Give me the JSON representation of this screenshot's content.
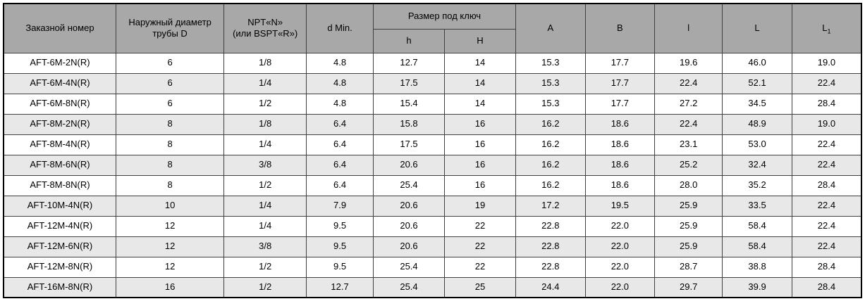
{
  "colors": {
    "header_bg": "#a8a8a8",
    "row_bg": "#ffffff",
    "row_alt_bg": "#e8e8e8",
    "border": "#404040",
    "outer_border": "#000000"
  },
  "table": {
    "headers": {
      "order_number": "Заказной номер",
      "outer_diameter": "Наружный диаметр\nтрубы D",
      "thread": "NPT«N»\n(или BSPT«R»)",
      "d_min": "d Min.",
      "wrench_size": "Размер под ключ",
      "h_small": "h",
      "h_big": "H",
      "a": "A",
      "b": "B",
      "l_small": "l",
      "l_big": "L",
      "l1_main": "L",
      "l1_sub": "1"
    },
    "rows": [
      [
        "AFT-6M-2N(R)",
        "6",
        "1/8",
        "4.8",
        "12.7",
        "14",
        "15.3",
        "17.7",
        "19.6",
        "46.0",
        "19.0"
      ],
      [
        "AFT-6M-4N(R)",
        "6",
        "1/4",
        "4.8",
        "17.5",
        "14",
        "15.3",
        "17.7",
        "22.4",
        "52.1",
        "22.4"
      ],
      [
        "AFT-6M-8N(R)",
        "6",
        "1/2",
        "4.8",
        "15.4",
        "14",
        "15.3",
        "17.7",
        "27.2",
        "34.5",
        "28.4"
      ],
      [
        "AFT-8M-2N(R)",
        "8",
        "1/8",
        "6.4",
        "15.8",
        "16",
        "16.2",
        "18.6",
        "22.4",
        "48.9",
        "19.0"
      ],
      [
        "AFT-8M-4N(R)",
        "8",
        "1/4",
        "6.4",
        "17.5",
        "16",
        "16.2",
        "18.6",
        "23.1",
        "53.0",
        "22.4"
      ],
      [
        "AFT-8M-6N(R)",
        "8",
        "3/8",
        "6.4",
        "20.6",
        "16",
        "16.2",
        "18.6",
        "25.2",
        "32.4",
        "22.4"
      ],
      [
        "AFT-8M-8N(R)",
        "8",
        "1/2",
        "6.4",
        "25.4",
        "16",
        "16.2",
        "18.6",
        "28.0",
        "35.2",
        "28.4"
      ],
      [
        "AFT-10M-4N(R)",
        "10",
        "1/4",
        "7.9",
        "20.6",
        "19",
        "17.2",
        "19.5",
        "25.9",
        "33.5",
        "22.4"
      ],
      [
        "AFT-12M-4N(R)",
        "12",
        "1/4",
        "9.5",
        "20.6",
        "22",
        "22.8",
        "22.0",
        "25.9",
        "58.4",
        "22.4"
      ],
      [
        "AFT-12M-6N(R)",
        "12",
        "3/8",
        "9.5",
        "20.6",
        "22",
        "22.8",
        "22.0",
        "25.9",
        "58.4",
        "22.4"
      ],
      [
        "AFT-12M-8N(R)",
        "12",
        "1/2",
        "9.5",
        "25.4",
        "22",
        "22.8",
        "22.0",
        "28.7",
        "38.8",
        "28.4"
      ],
      [
        "AFT-16M-8N(R)",
        "16",
        "1/2",
        "12.7",
        "25.4",
        "25",
        "24.4",
        "22.0",
        "29.7",
        "39.9",
        "28.4"
      ]
    ]
  }
}
